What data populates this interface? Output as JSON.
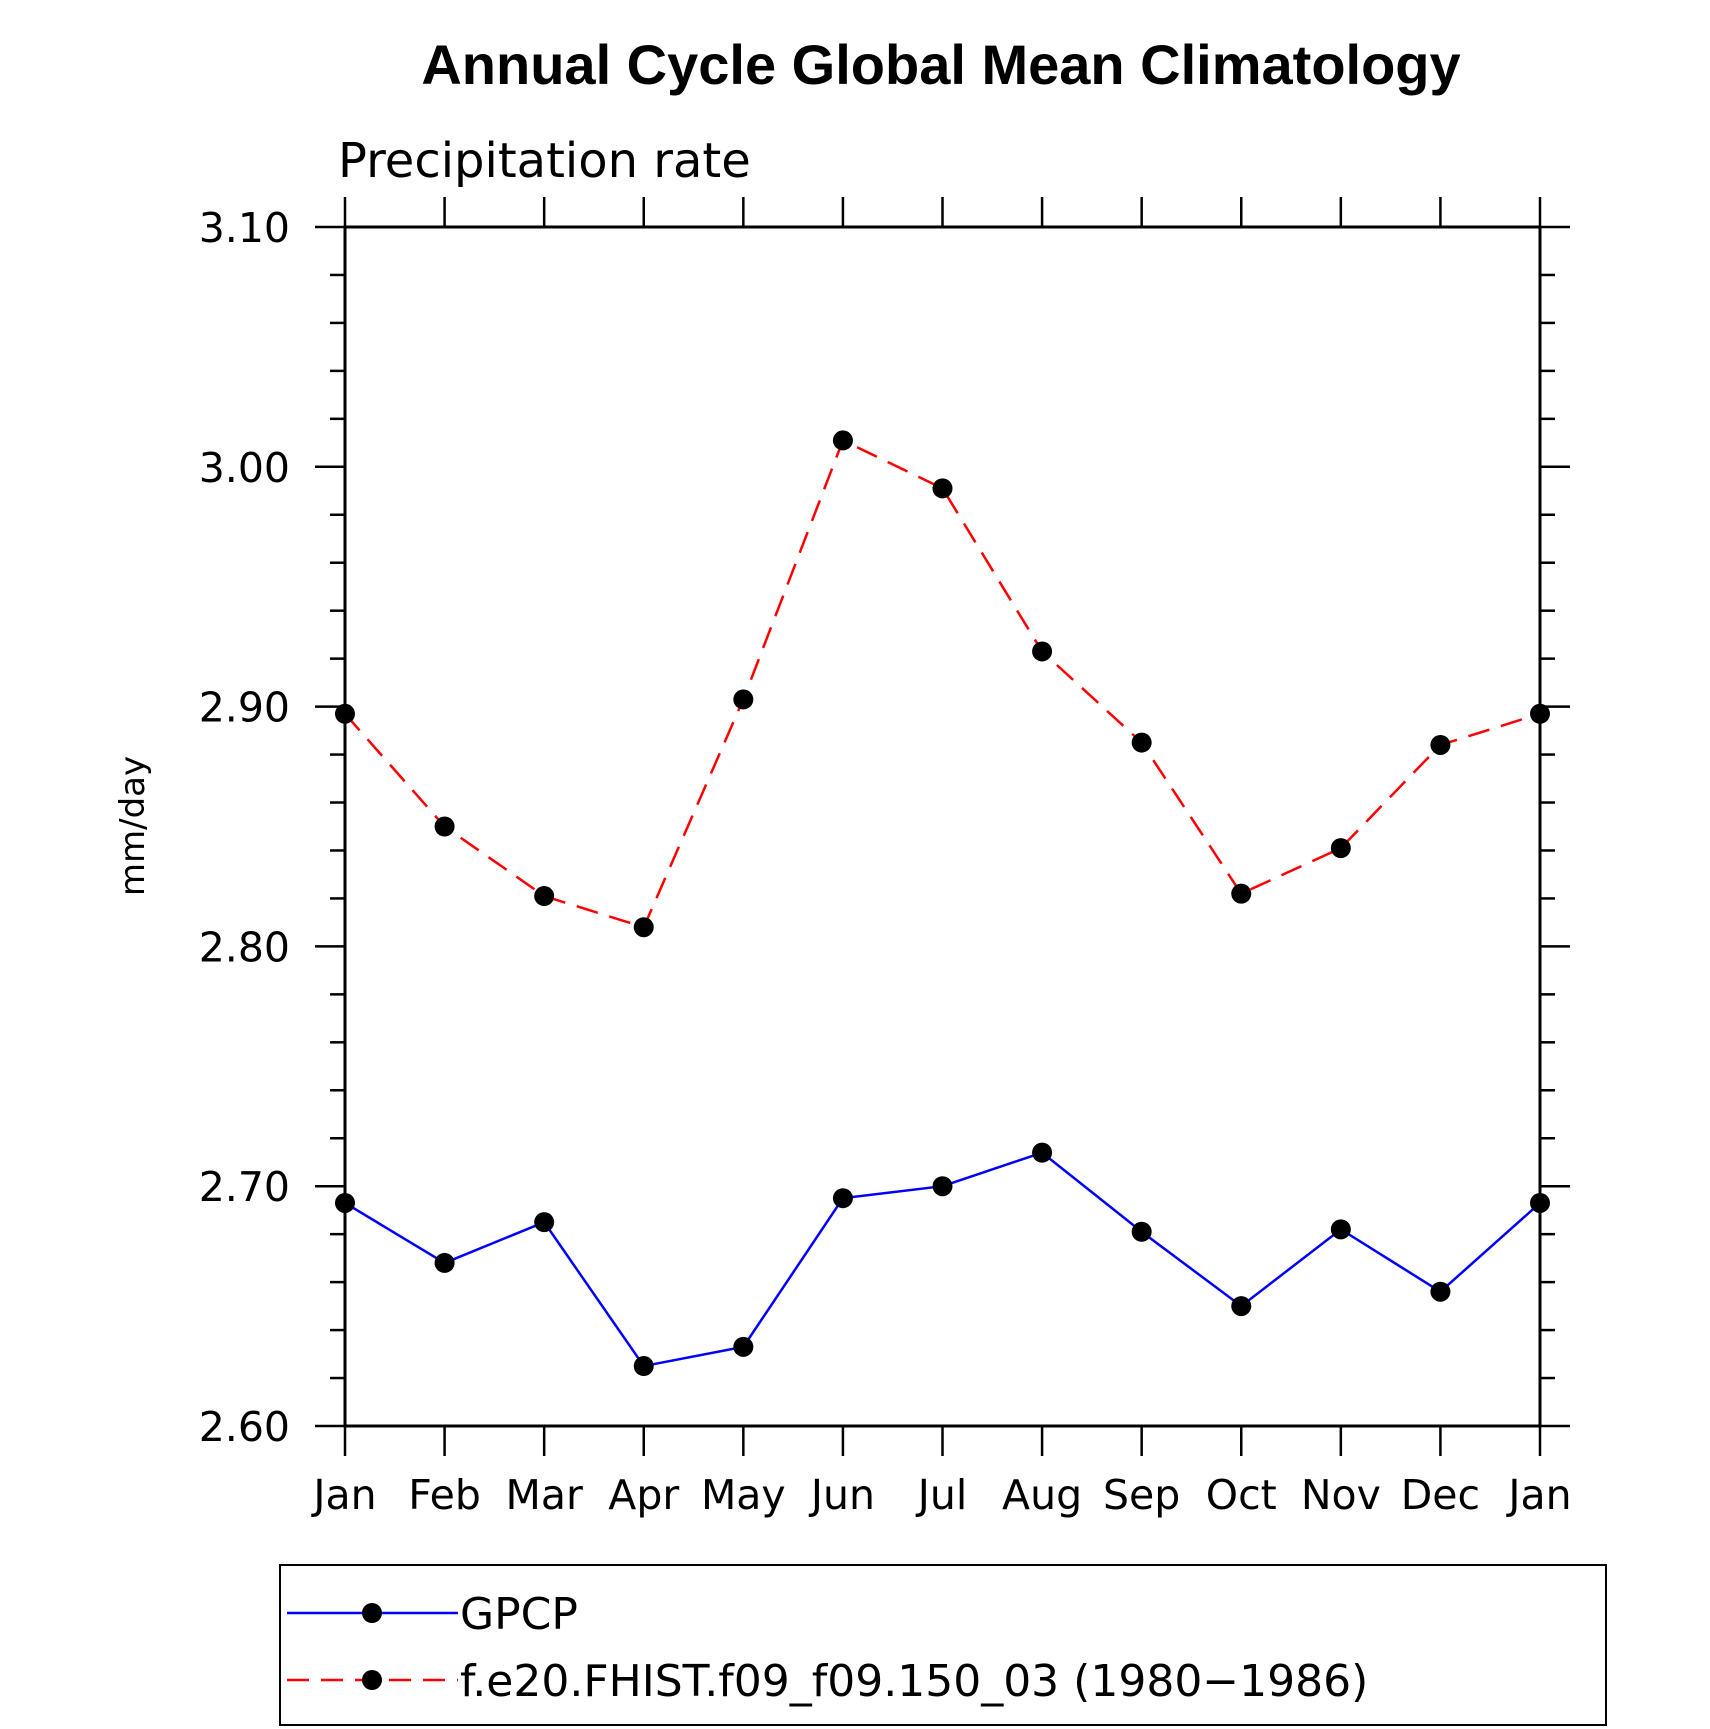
{
  "chart_data": {
    "type": "line",
    "title": "Annual Cycle Global Mean Climatology",
    "subtitle": "Precipitation rate",
    "ylabel": "mm/day",
    "xlabel": "",
    "categories": [
      "Jan",
      "Feb",
      "Mar",
      "Apr",
      "May",
      "Jun",
      "Jul",
      "Aug",
      "Sep",
      "Oct",
      "Nov",
      "Dec",
      "Jan"
    ],
    "ylim": [
      2.6,
      3.1
    ],
    "yticks": [
      "2.60",
      "2.70",
      "2.80",
      "2.90",
      "3.00",
      "3.10"
    ],
    "grid": false,
    "legend_position": "bottom",
    "series": [
      {
        "name": "GPCP",
        "color": "#0000ff",
        "dash": "solid",
        "marker": "circle",
        "values": [
          2.693,
          2.668,
          2.685,
          2.625,
          2.633,
          2.695,
          2.7,
          2.714,
          2.681,
          2.65,
          2.682,
          2.656,
          2.693
        ]
      },
      {
        "name": "f.e20.FHIST.f09_f09.150_03 (1980−1986)",
        "color": "#ff0000",
        "dash": "dashed",
        "marker": "circle",
        "values": [
          2.897,
          2.85,
          2.821,
          2.808,
          2.903,
          3.011,
          2.991,
          2.923,
          2.885,
          2.822,
          2.841,
          2.884,
          2.897
        ]
      }
    ]
  }
}
